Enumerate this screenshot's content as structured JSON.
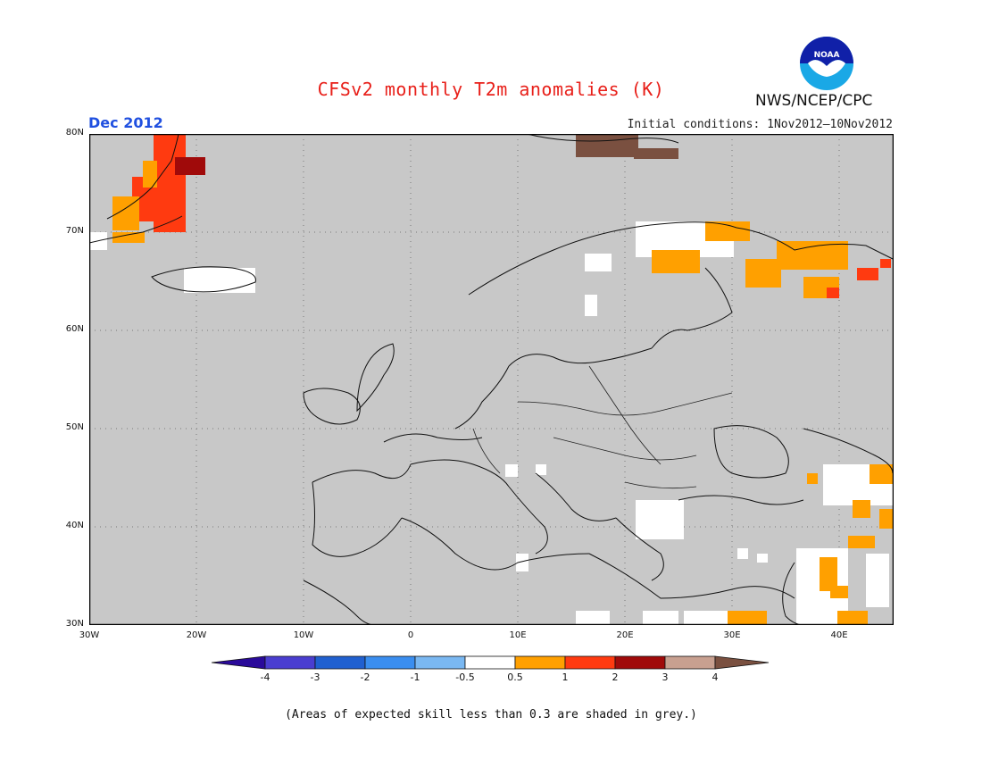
{
  "header": {
    "title": "CFSv2 monthly T2m anomalies (K)",
    "month": "Dec 2012",
    "initial_conditions": "Initial conditions: 1Nov2012—10Nov2012",
    "agency": "NWS/NCEP/CPC",
    "logo_text": "NOAA"
  },
  "map": {
    "lat_labels": [
      "80N",
      "70N",
      "60N",
      "50N",
      "40N",
      "30N"
    ],
    "lon_labels": [
      "30W",
      "20W",
      "10W",
      "0",
      "10E",
      "20E",
      "30E",
      "40E"
    ],
    "background_color": "#c8c8c8",
    "gridline_style": "dotted"
  },
  "legend": {
    "tick_labels": [
      "-4",
      "-3",
      "-2",
      "-1",
      "-0.5",
      "0.5",
      "1",
      "2",
      "3",
      "4"
    ],
    "colors": [
      "#2a0a9a",
      "#4a3ed0",
      "#2060d0",
      "#3a8ef0",
      "#7ab8f2",
      "#ffffff",
      "#ffa000",
      "#ff3a10",
      "#a00a0a",
      "#c8a090",
      "#7a5040"
    ]
  },
  "footnote": "(Areas of expected skill less than 0.3 are shaded in grey.)"
}
